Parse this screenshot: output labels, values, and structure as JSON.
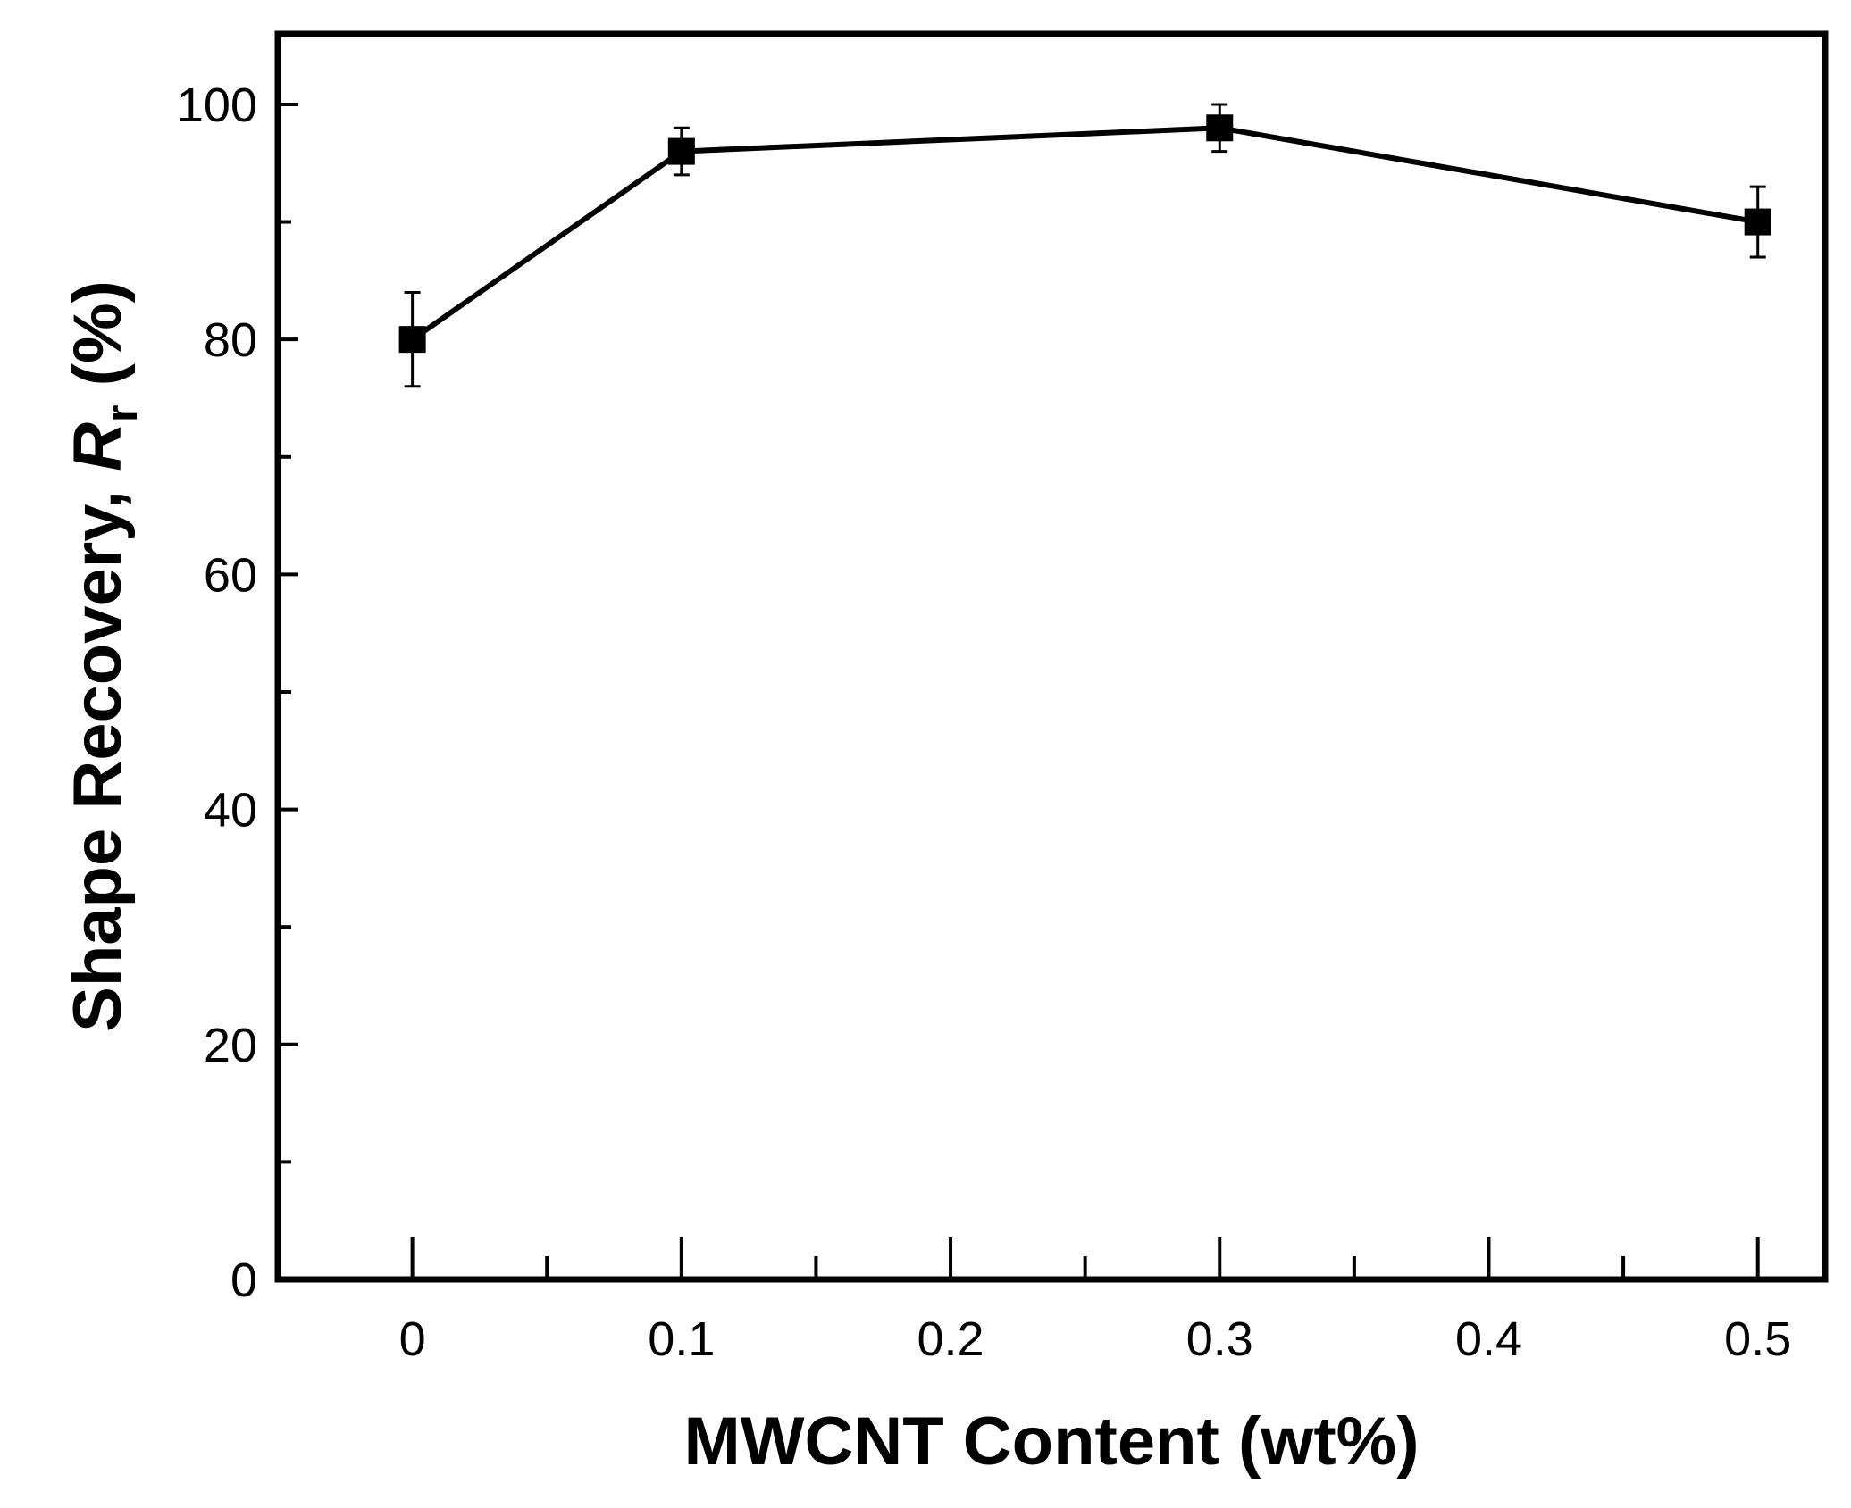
{
  "chart_data": {
    "type": "line",
    "title": "",
    "xlabel": "MWCNT Content (wt%)",
    "ylabel": {
      "prefix": "Shape Recovery, ",
      "symbol": "R",
      "subscript": "r",
      "suffix": " (%)"
    },
    "xlim": [
      -0.05,
      0.525
    ],
    "ylim": [
      0,
      106
    ],
    "x_ticks": [
      {
        "value": 0,
        "label": "0"
      },
      {
        "value": 0.1,
        "label": "0.1"
      },
      {
        "value": 0.2,
        "label": "0.2"
      },
      {
        "value": 0.3,
        "label": "0.3"
      },
      {
        "value": 0.4,
        "label": "0.4"
      },
      {
        "value": 0.5,
        "label": "0.5"
      }
    ],
    "x_minor_ticks": [
      0.05,
      0.15,
      0.25,
      0.35,
      0.45
    ],
    "y_ticks": [
      {
        "value": 0,
        "label": "0"
      },
      {
        "value": 20,
        "label": "20"
      },
      {
        "value": 40,
        "label": "40"
      },
      {
        "value": 60,
        "label": "60"
      },
      {
        "value": 80,
        "label": "80"
      },
      {
        "value": 100,
        "label": "100"
      }
    ],
    "y_minor_ticks": [
      10,
      30,
      50,
      70,
      90
    ],
    "grid": false,
    "legend": "none",
    "series": [
      {
        "marker": "square",
        "color": "#000000",
        "points": [
          {
            "x": 0,
            "y": 80,
            "err": 4
          },
          {
            "x": 0.1,
            "y": 96,
            "err": 2
          },
          {
            "x": 0.3,
            "y": 98,
            "err": 2
          },
          {
            "x": 0.5,
            "y": 90,
            "err": 3
          }
        ]
      }
    ]
  }
}
